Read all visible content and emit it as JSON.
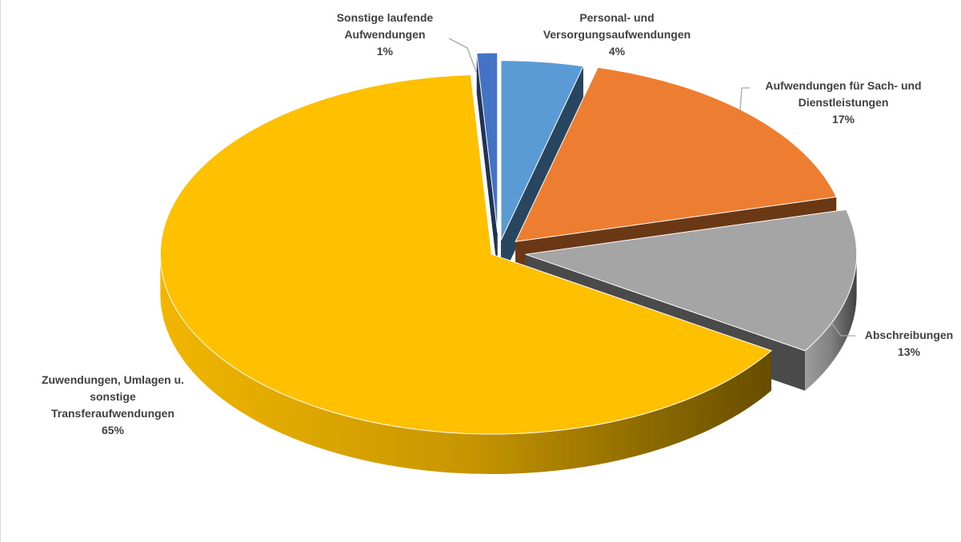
{
  "chart_data": {
    "type": "pie",
    "title": "",
    "slices": [
      {
        "label_lines": [
          "Personal- und",
          "Versorgungsaufwendungen"
        ],
        "pct_label": "4%",
        "value": 4,
        "color": "#5b9bd5"
      },
      {
        "label_lines": [
          "Aufwendungen für Sach- und",
          "Dienstleistungen"
        ],
        "pct_label": "17%",
        "value": 17,
        "color": "#ed7d31"
      },
      {
        "label_lines": [
          "Abschreibungen"
        ],
        "pct_label": "13%",
        "value": 13,
        "color": "#a5a5a5"
      },
      {
        "label_lines": [
          "Zuwendungen, Umlagen u.",
          "sonstige",
          "Transferaufwendungen"
        ],
        "pct_label": "65%",
        "value": 65,
        "color": "#ffc000"
      },
      {
        "label_lines": [
          "Sonstige laufende",
          "Aufwendungen"
        ],
        "pct_label": "1%",
        "value": 1,
        "color": "#4472c4"
      }
    ]
  }
}
